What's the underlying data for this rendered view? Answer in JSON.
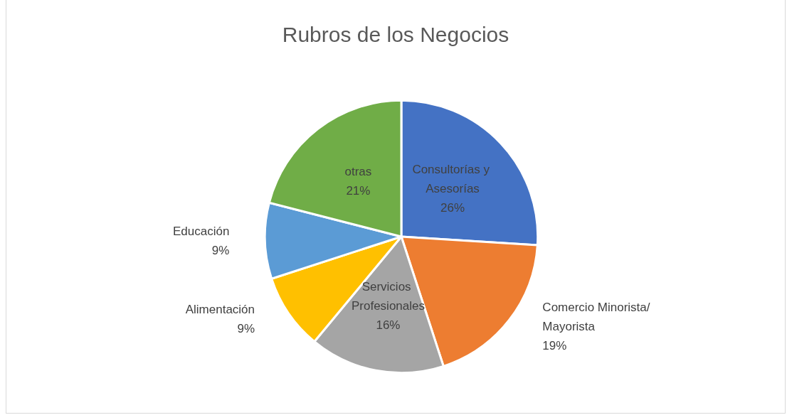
{
  "chart_data": {
    "type": "pie",
    "title": "Rubros de los Negocios",
    "categories": [
      "Consultorías y Asesorías",
      "Comercio Minorista/Mayorista",
      "Servicios Profesionales",
      "Alimentación",
      "Educación",
      "otras"
    ],
    "values": [
      26,
      19,
      16,
      9,
      9,
      21
    ],
    "value_labels": [
      "26%",
      "19%",
      "16%",
      "9%",
      "9%",
      "21%"
    ],
    "colors": [
      "#4472c4",
      "#ed7d31",
      "#a5a5a5",
      "#ffc000",
      "#5b9bd5",
      "#70ad47"
    ],
    "legend": false
  }
}
